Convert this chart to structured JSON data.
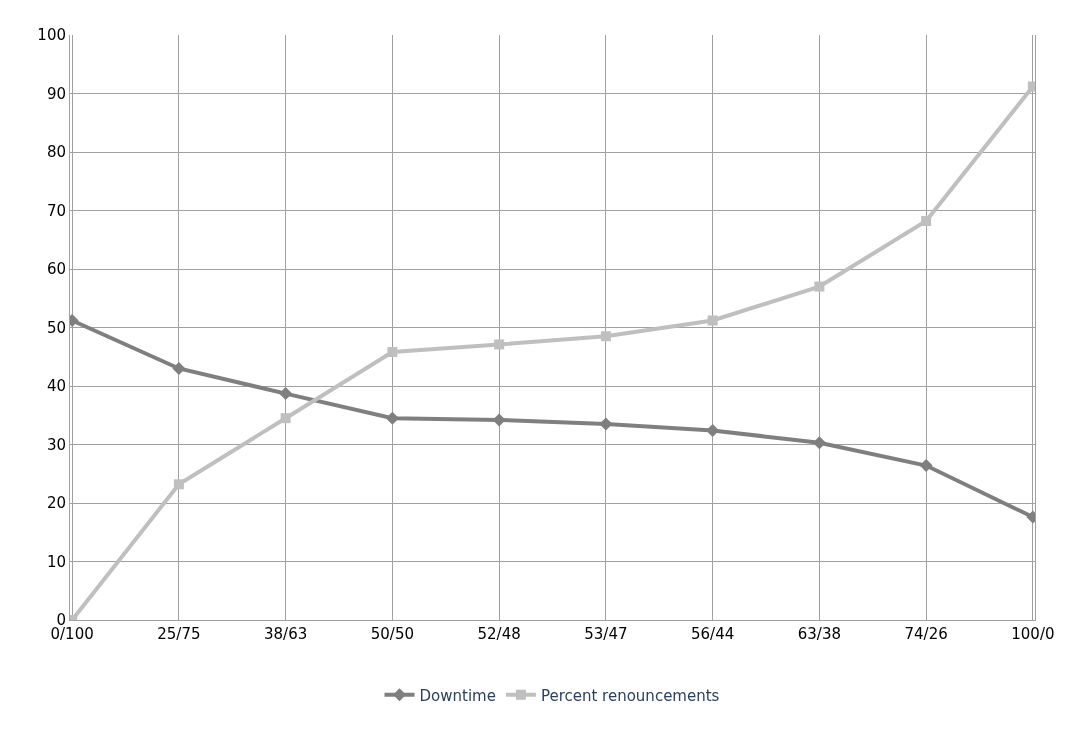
{
  "chart_data": {
    "type": "line",
    "categories": [
      "0/100",
      "25/75",
      "38/63",
      "50/50",
      "52/48",
      "53/47",
      "56/44",
      "63/38",
      "74/26",
      "100/0"
    ],
    "series": [
      {
        "name": "Downtime",
        "color": "#7f7f7f",
        "marker": "diamond",
        "values": [
          51.2,
          43,
          38.7,
          34.5,
          34.2,
          33.5,
          32.4,
          30.3,
          26.4,
          17.6
        ]
      },
      {
        "name": "Percent renouncements",
        "color": "#bfbfbf",
        "marker": "square",
        "values": [
          0,
          23.2,
          34.5,
          45.8,
          47.1,
          48.5,
          51.2,
          57,
          68.2,
          91.2
        ]
      }
    ],
    "ylim": [
      0,
      100
    ],
    "yticks": [
      0,
      10,
      20,
      30,
      40,
      50,
      60,
      70,
      80,
      90,
      100
    ],
    "grid": true,
    "legend": "bottom",
    "line_style": "solid"
  }
}
